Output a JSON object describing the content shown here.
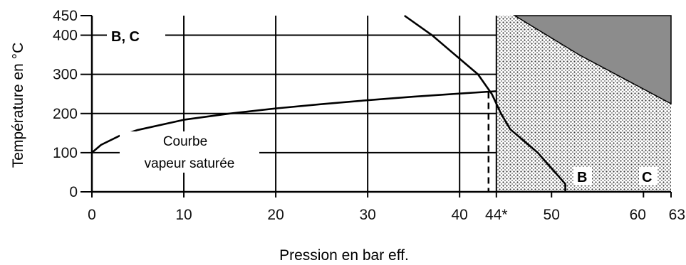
{
  "chart_data": {
    "type": "line",
    "title": "",
    "xlabel": "Pression en bar eff.",
    "ylabel": "Température en °C",
    "xlim": [
      0,
      63
    ],
    "ylim": [
      0,
      450
    ],
    "x_ticks": [
      {
        "value": 0,
        "label": "0"
      },
      {
        "value": 10,
        "label": "10"
      },
      {
        "value": 20,
        "label": "20"
      },
      {
        "value": 30,
        "label": "30"
      },
      {
        "value": 40,
        "label": "40"
      },
      {
        "value": 44,
        "label": "44*"
      },
      {
        "value": 50,
        "label": "50"
      },
      {
        "value": 60,
        "label": "60"
      },
      {
        "value": 63,
        "label": "63"
      }
    ],
    "y_ticks": [
      {
        "value": 0,
        "label": "0"
      },
      {
        "value": 100,
        "label": "100"
      },
      {
        "value": 200,
        "label": "200"
      },
      {
        "value": 300,
        "label": "300"
      },
      {
        "value": 400,
        "label": "400"
      },
      {
        "value": 450,
        "label": "450"
      }
    ],
    "grid": true,
    "series": [
      {
        "name": "Courbe vapeur saturée",
        "x": [
          0,
          1,
          3,
          5,
          10,
          15,
          20,
          25,
          30,
          35,
          40,
          44
        ],
        "y": [
          100,
          120,
          143,
          158,
          184,
          200,
          213,
          224,
          234,
          243,
          251,
          257
        ]
      },
      {
        "name": "B",
        "x": [
          34,
          37,
          40,
          42,
          43.5,
          44.5,
          45.5,
          47,
          48.5,
          50,
          51.5,
          51.5
        ],
        "y": [
          450,
          400,
          340,
          300,
          250,
          200,
          160,
          130,
          100,
          60,
          20,
          0
        ]
      }
    ],
    "regions": [
      {
        "name": "B, C",
        "x_from": 44,
        "x_to": 63,
        "y_from": 0,
        "y_to": 450,
        "fill": "dotted"
      },
      {
        "name": "C",
        "boundary_x": [
          46,
          53,
          63
        ],
        "boundary_y": [
          450,
          350,
          225
        ],
        "fill": "#8c8c8c"
      }
    ],
    "annotations": [
      {
        "text": "B, C"
      },
      {
        "text": "Courbe"
      },
      {
        "text": "vapeur saturée"
      },
      {
        "text": "B"
      },
      {
        "text": "C"
      }
    ]
  }
}
